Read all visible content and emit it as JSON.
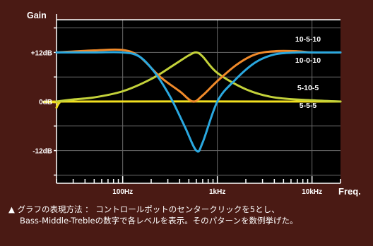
{
  "chart_data": {
    "type": "line",
    "ylabel": "Gain",
    "xlabel": "Freq.",
    "y_ticks": [
      {
        "value": 12,
        "label": "+12dB"
      },
      {
        "value": 0,
        "label": "0dB"
      },
      {
        "value": -12,
        "label": "-12dB"
      }
    ],
    "ylim": [
      -20,
      20
    ],
    "x_scale": "log",
    "xlim": [
      20,
      20000
    ],
    "x_ticks": [
      {
        "value": 100,
        "label": "100Hz"
      },
      {
        "value": 1000,
        "label": "1kHz"
      },
      {
        "value": 10000,
        "label": "10kHz"
      }
    ],
    "grid": true,
    "series": [
      {
        "name": "10-5-10",
        "color": "#f08a2a",
        "x": [
          20,
          50,
          100,
          150,
          250,
          400,
          550,
          700,
          1000,
          1600,
          2500,
          4000,
          7000,
          10000,
          20000
        ],
        "y": [
          12,
          12.5,
          12.6,
          11,
          6,
          2.5,
          0,
          1.5,
          5,
          9,
          11.5,
          12.3,
          12.3,
          12,
          12
        ]
      },
      {
        "name": "10-0-10",
        "color": "#2aa8e0",
        "x": [
          20,
          50,
          100,
          150,
          220,
          320,
          450,
          600,
          700,
          1000,
          1500,
          2500,
          4000,
          7000,
          10000,
          20000
        ],
        "y": [
          12,
          12,
          12,
          11,
          7,
          1,
          -6,
          -12,
          -10,
          0,
          5,
          9.5,
          11.5,
          12,
          12,
          12
        ]
      },
      {
        "name": "5-10-5",
        "color": "#c4d23a",
        "x": [
          20,
          30,
          50,
          100,
          200,
          350,
          500,
          600,
          700,
          1000,
          2000,
          4000,
          10000,
          20000
        ],
        "y": [
          0,
          0.5,
          1,
          2.5,
          5.5,
          9,
          11.3,
          12,
          11,
          7,
          3,
          1,
          0.3,
          0
        ]
      },
      {
        "name": "5-5-5",
        "color": "#f2e020",
        "x": [
          20,
          21.5,
          25,
          20000
        ],
        "y": [
          -1.5,
          -0.3,
          0,
          0
        ]
      }
    ]
  },
  "caption": {
    "line1": "▲ グラフの表現方法 ： コントロールポットのセンタークリックを5とし、",
    "line2": "Bass-Middle-Trebleの数字で各レベルを表示。そのパターンを数例挙げた。"
  }
}
